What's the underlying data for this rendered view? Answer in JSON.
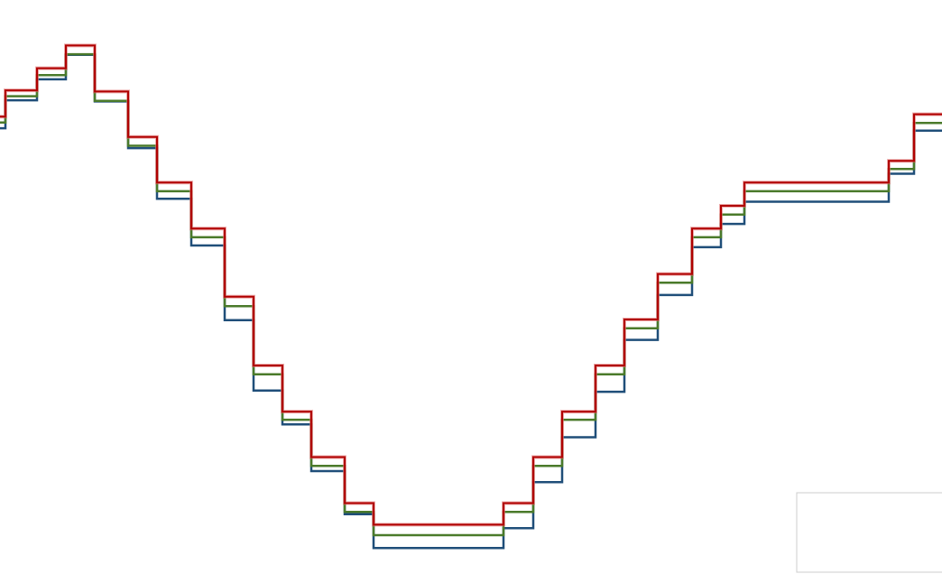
{
  "chart_data": {
    "type": "line",
    "title": "",
    "xlabel": "",
    "ylabel": "",
    "grid": false,
    "legend_position": "bottom-right",
    "xlim": [
      0,
      1044
    ],
    "ylim": [
      0,
      1
    ],
    "colors": {
      "upper": "#b00000",
      "upper_light": "#e07070",
      "middle": "#4a7a2a",
      "lower": "#1f4e79"
    },
    "steps": [
      {
        "x0": 0,
        "x1": 6,
        "upper": 0.8,
        "middle": 0.79,
        "lower": 0.78
      },
      {
        "x0": 6,
        "x1": 41,
        "upper": 0.845,
        "middle": 0.835,
        "lower": 0.828
      },
      {
        "x0": 41,
        "x1": 73,
        "upper": 0.883,
        "middle": 0.871,
        "lower": 0.864
      },
      {
        "x0": 73,
        "x1": 105,
        "upper": 0.922,
        "middle": 0.907,
        "lower": 0.906
      },
      {
        "x0": 105,
        "x1": 142,
        "upper": 0.843,
        "middle": 0.827,
        "lower": 0.826
      },
      {
        "x0": 142,
        "x1": 174,
        "upper": 0.765,
        "middle": 0.75,
        "lower": 0.746
      },
      {
        "x0": 174,
        "x1": 212,
        "upper": 0.687,
        "middle": 0.672,
        "lower": 0.659
      },
      {
        "x0": 212,
        "x1": 249,
        "upper": 0.608,
        "middle": 0.593,
        "lower": 0.579
      },
      {
        "x0": 249,
        "x1": 281,
        "upper": 0.491,
        "middle": 0.475,
        "lower": 0.451
      },
      {
        "x0": 281,
        "x1": 313,
        "upper": 0.373,
        "middle": 0.358,
        "lower": 0.33
      },
      {
        "x0": 313,
        "x1": 345,
        "upper": 0.294,
        "middle": 0.28,
        "lower": 0.272
      },
      {
        "x0": 345,
        "x1": 382,
        "upper": 0.216,
        "middle": 0.201,
        "lower": 0.192
      },
      {
        "x0": 382,
        "x1": 414,
        "upper": 0.137,
        "middle": 0.122,
        "lower": 0.118
      },
      {
        "x0": 414,
        "x1": 558,
        "upper": 0.1,
        "middle": 0.082,
        "lower": 0.06
      },
      {
        "x0": 558,
        "x1": 591,
        "upper": 0.137,
        "middle": 0.122,
        "lower": 0.094
      },
      {
        "x0": 591,
        "x1": 623,
        "upper": 0.216,
        "middle": 0.201,
        "lower": 0.173
      },
      {
        "x0": 623,
        "x1": 660,
        "upper": 0.294,
        "middle": 0.28,
        "lower": 0.25
      },
      {
        "x0": 660,
        "x1": 692,
        "upper": 0.373,
        "middle": 0.358,
        "lower": 0.328
      },
      {
        "x0": 692,
        "x1": 729,
        "upper": 0.452,
        "middle": 0.437,
        "lower": 0.417
      },
      {
        "x0": 729,
        "x1": 767,
        "upper": 0.53,
        "middle": 0.515,
        "lower": 0.494
      },
      {
        "x0": 767,
        "x1": 799,
        "upper": 0.608,
        "middle": 0.593,
        "lower": 0.576
      },
      {
        "x0": 799,
        "x1": 825,
        "upper": 0.647,
        "middle": 0.632,
        "lower": 0.616
      },
      {
        "x0": 825,
        "x1": 985,
        "upper": 0.687,
        "middle": 0.672,
        "lower": 0.654
      },
      {
        "x0": 985,
        "x1": 1013,
        "upper": 0.724,
        "middle": 0.71,
        "lower": 0.702
      },
      {
        "x0": 1013,
        "x1": 1044,
        "upper": 0.804,
        "middle": 0.789,
        "lower": 0.776
      }
    ],
    "legend_entries": []
  }
}
